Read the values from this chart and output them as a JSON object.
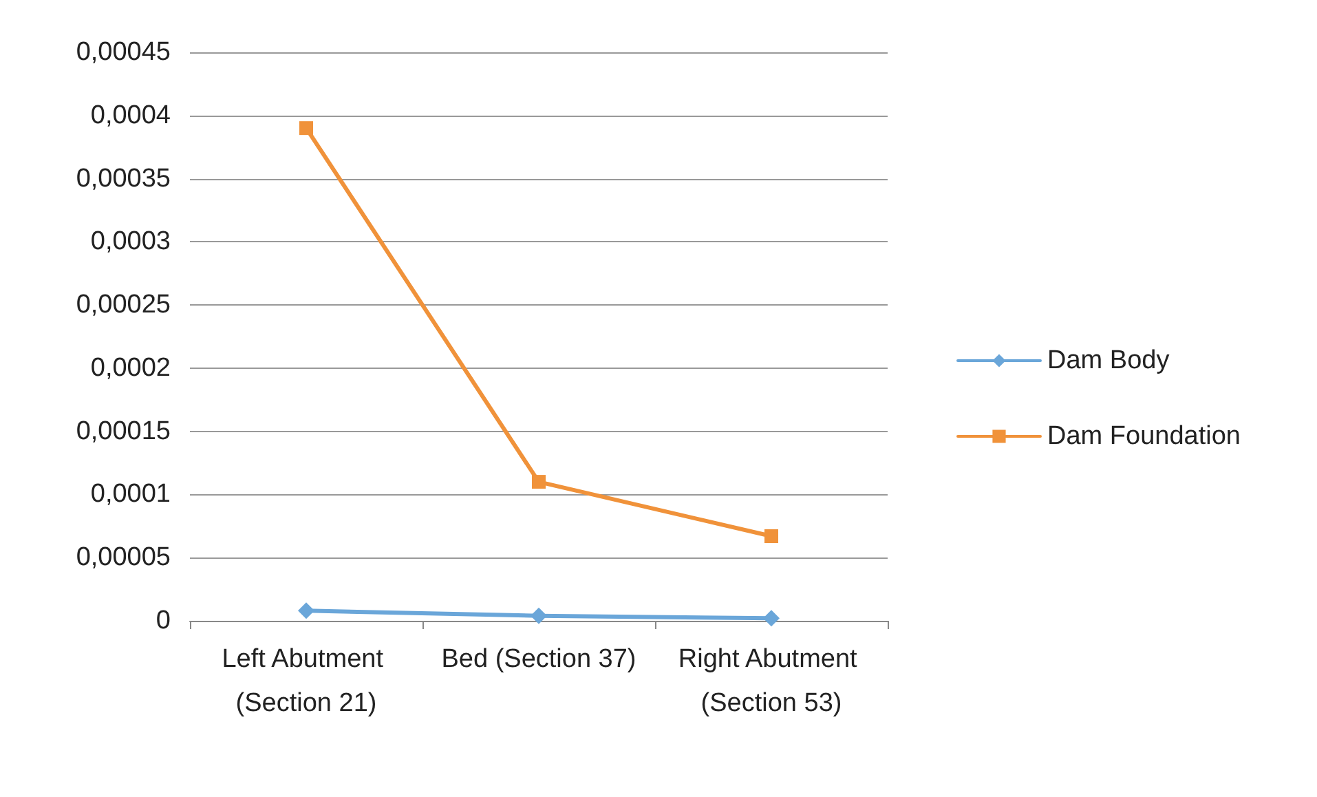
{
  "chart_data": {
    "type": "line",
    "categories": [
      "Left Abutment (Section 21)",
      "Bed (Section 37)",
      "Right Abutment (Section 53)"
    ],
    "series": [
      {
        "name": "Dam Body",
        "color": "#6aa6d9",
        "marker": "diamond",
        "values": [
          8e-06,
          4e-06,
          2e-06
        ]
      },
      {
        "name": "Dam Foundation",
        "color": "#f0923a",
        "marker": "square",
        "values": [
          0.00039,
          0.00011,
          6.7e-05
        ]
      }
    ],
    "ylim": [
      0,
      0.00045
    ],
    "yticks": [
      0,
      {
        "value": 5e-05,
        "label": "0,00005"
      },
      {
        "value": 0.0001,
        "label": "0,0001"
      },
      {
        "value": 0.00015,
        "label": "0,00015"
      },
      {
        "value": 0.0002,
        "label": "0,0002"
      },
      {
        "value": 0.00025,
        "label": "0,00025"
      },
      {
        "value": 0.0003,
        "label": "0,0003"
      },
      {
        "value": 0.00035,
        "label": "0,00035"
      },
      {
        "value": 0.0004,
        "label": "0,0004"
      },
      {
        "value": 0.00045,
        "label": "0,00045"
      }
    ],
    "grid": "y",
    "legend": "right",
    "line_style": "solid"
  }
}
